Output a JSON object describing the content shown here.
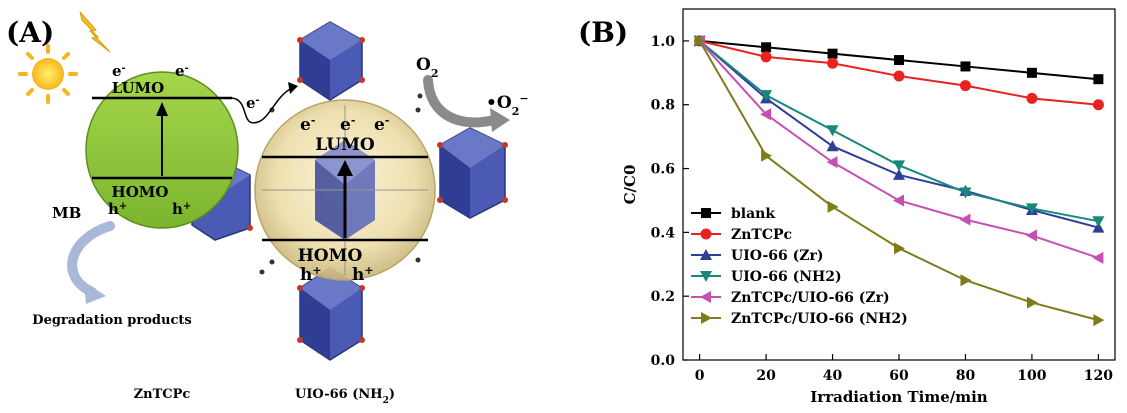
{
  "panel_a": {
    "panel_label": "(A)",
    "donor": {
      "name": "ZnTCPc",
      "lumo": "LUMO",
      "homo": "HOMO",
      "electron": "e",
      "hole": "h"
    },
    "acceptor": {
      "name": "UIO-66 (NH",
      "name_sub": "2",
      "name_close": ")",
      "lumo": "LUMO",
      "homo": "HOMO",
      "electron": "e",
      "hole": "h"
    },
    "oxygen": "O",
    "oxygen_sub": "2",
    "superoxide": "•O",
    "superoxide_sub": "2",
    "superoxide_sup": "−",
    "mb_label": "MB",
    "products_label": "Degradation products",
    "colors": {
      "donor": "#8dc63f",
      "framework": "#3b4aa3",
      "arrow": "#9aa9c9"
    }
  },
  "panel_b": {
    "panel_label": "(B)"
  },
  "chart_data": {
    "type": "line",
    "xlabel": "Irradiation Time/min",
    "ylabel": "C/C0",
    "xlim": [
      -5,
      125
    ],
    "ylim": [
      0.0,
      1.1
    ],
    "x_ticks": [
      0,
      20,
      40,
      60,
      80,
      100,
      120
    ],
    "y_ticks": [
      0.0,
      0.2,
      0.4,
      0.6,
      0.8,
      1.0
    ],
    "x_tick_labels": [
      "0",
      "20",
      "40",
      "60",
      "80",
      "100",
      "120"
    ],
    "y_tick_labels": [
      "0.0",
      "0.2",
      "0.4",
      "0.6",
      "0.8",
      "1.0"
    ],
    "legend_position": "bottom-left",
    "x": [
      0,
      20,
      40,
      60,
      80,
      100,
      120
    ],
    "series": [
      {
        "name": "blank",
        "color": "#000000",
        "marker": "square",
        "values": [
          1.0,
          0.98,
          0.96,
          0.94,
          0.92,
          0.9,
          0.88
        ]
      },
      {
        "name": "ZnTCPc",
        "color": "#e8231f",
        "marker": "circle",
        "values": [
          1.0,
          0.95,
          0.93,
          0.89,
          0.86,
          0.82,
          0.8
        ]
      },
      {
        "name": "UIO-66 (Zr)",
        "color": "#2e3f98",
        "marker": "triangle-up",
        "values": [
          1.0,
          0.82,
          0.67,
          0.58,
          0.53,
          0.47,
          0.415
        ]
      },
      {
        "name": "UIO-66 (NH2)",
        "color": "#18887a",
        "marker": "triangle-down",
        "values": [
          1.0,
          0.83,
          0.72,
          0.61,
          0.525,
          0.475,
          0.435
        ]
      },
      {
        "name": "ZnTCPc/UIO-66 (Zr)",
        "color": "#c64fb4",
        "marker": "triangle-left",
        "values": [
          1.0,
          0.77,
          0.62,
          0.5,
          0.44,
          0.39,
          0.32
        ]
      },
      {
        "name": "ZnTCPc/UIO-66 (NH2)",
        "color": "#7f7d1a",
        "marker": "triangle-right",
        "values": [
          1.0,
          0.64,
          0.48,
          0.35,
          0.25,
          0.18,
          0.125
        ]
      }
    ]
  }
}
